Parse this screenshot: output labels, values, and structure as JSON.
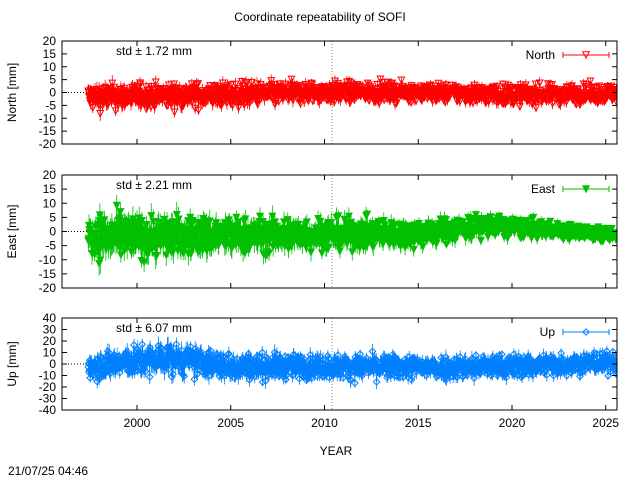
{
  "chart_data": {
    "type": "scatter",
    "title": "Coordinate repeatability of SOFI",
    "xlabel": "YEAR",
    "xlim": [
      1996.0,
      2025.6
    ],
    "x_ticks": [
      2000,
      2005,
      2010,
      2015,
      2020,
      2025
    ],
    "x_tick_labels": [
      "2000",
      "2005",
      "2010",
      "2015",
      "2020",
      "2025"
    ],
    "reference_line_x": 2010.4,
    "timestamp": "21/07/25 04:46",
    "data_start_year": 1997.4,
    "data_end_year": 2025.6,
    "panels": [
      {
        "id": "north",
        "ylabel": "North [mm]",
        "ylim": [
          -20,
          20
        ],
        "y_ticks": [
          -20,
          -15,
          -10,
          -5,
          0,
          5,
          10,
          15,
          20
        ],
        "y_tick_labels": [
          "-20",
          "-15",
          "-10",
          "-5",
          "0",
          "5",
          "10",
          "15",
          "20"
        ],
        "std_label": "std ± 1.72 mm",
        "legend": "North",
        "color": "#ff0000",
        "marker": "triangle-down-open",
        "series_profile": [
          {
            "year": 1997.4,
            "mean": -2.0,
            "spread": 4.5
          },
          {
            "year": 2000,
            "mean": -1.5,
            "spread": 4.0
          },
          {
            "year": 2005,
            "mean": -1.0,
            "spread": 4.0
          },
          {
            "year": 2010,
            "mean": 0.0,
            "spread": 3.5
          },
          {
            "year": 2015,
            "mean": 0.0,
            "spread": 3.0
          },
          {
            "year": 2020,
            "mean": -1.0,
            "spread": 3.5
          },
          {
            "year": 2025.6,
            "mean": -0.5,
            "spread": 3.0
          }
        ]
      },
      {
        "id": "east",
        "ylabel": "East [mm]",
        "ylim": [
          -20,
          20
        ],
        "y_ticks": [
          -20,
          -15,
          -10,
          -5,
          0,
          5,
          10,
          15,
          20
        ],
        "y_tick_labels": [
          "-20",
          "-15",
          "-10",
          "-5",
          "0",
          "5",
          "10",
          "15",
          "20"
        ],
        "std_label": "std ± 2.21 mm",
        "legend": "East",
        "color": "#00c000",
        "marker": "triangle-down-filled",
        "series_profile": [
          {
            "year": 1997.4,
            "mean": -2.0,
            "spread": 7.0
          },
          {
            "year": 2000,
            "mean": -2.0,
            "spread": 6.5
          },
          {
            "year": 2005,
            "mean": -1.5,
            "spread": 5.5
          },
          {
            "year": 2010,
            "mean": -1.0,
            "spread": 5.0
          },
          {
            "year": 2015,
            "mean": -1.0,
            "spread": 4.0
          },
          {
            "year": 2018.5,
            "mean": 2.0,
            "spread": 3.5
          },
          {
            "year": 2022,
            "mean": 0.5,
            "spread": 2.5
          },
          {
            "year": 2025.6,
            "mean": -1.5,
            "spread": 2.0
          }
        ]
      },
      {
        "id": "up",
        "ylabel": "Up [mm]",
        "ylim": [
          -40,
          40
        ],
        "y_ticks": [
          -40,
          -30,
          -20,
          -10,
          0,
          10,
          20,
          30,
          40
        ],
        "y_tick_labels": [
          "-40",
          "-30",
          "-20",
          "-10",
          "0",
          "10",
          "20",
          "30",
          "40"
        ],
        "std_label": "std ± 6.07 mm",
        "legend": "Up",
        "color": "#0080ff",
        "marker": "diamond-open",
        "series_profile": [
          {
            "year": 1997.4,
            "mean": -2.0,
            "spread": 10.0
          },
          {
            "year": 2001.5,
            "mean": 5.0,
            "spread": 12.0
          },
          {
            "year": 2005,
            "mean": -2.0,
            "spread": 10.0
          },
          {
            "year": 2010,
            "mean": -2.0,
            "spread": 9.0
          },
          {
            "year": 2015,
            "mean": -3.0,
            "spread": 9.0
          },
          {
            "year": 2020,
            "mean": -2.0,
            "spread": 9.0
          },
          {
            "year": 2025.6,
            "mean": 2.0,
            "spread": 8.0
          }
        ]
      }
    ]
  }
}
